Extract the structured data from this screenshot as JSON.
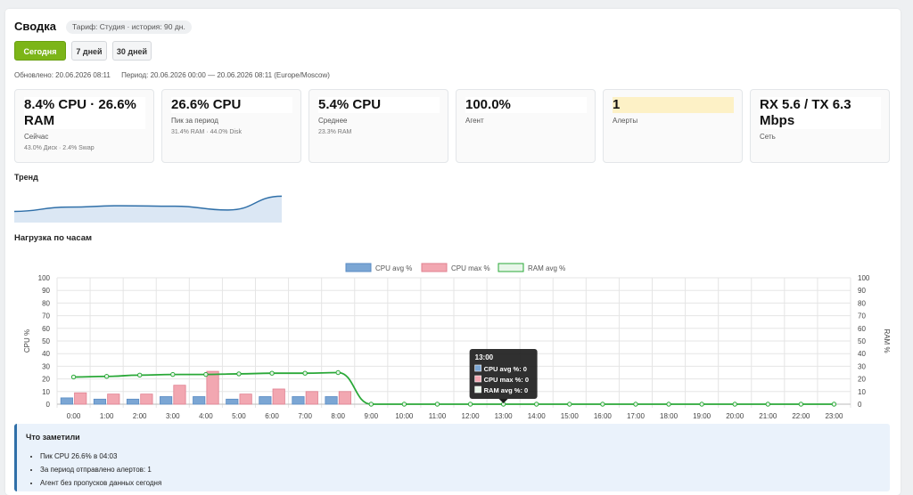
{
  "header": {
    "title": "Сводка",
    "badge": "Тариф: Студия · история: 90 дн."
  },
  "range_buttons": {
    "today": "Сегодня",
    "week": "7 дней",
    "month": "30 дней"
  },
  "meta": {
    "updated": "Обновлено: 20.06.2026 08:11",
    "period": "Период: 20.06.2026 00:00 — 20.06.2026 08:11 (Europe/Moscow)"
  },
  "cards": [
    {
      "value": "8.4% CPU · 26.6% RAM",
      "label": "Сейчас",
      "sub": "43.0% Диск · 2.4% Swap"
    },
    {
      "value": "26.6% CPU",
      "label": "Пик за период",
      "sub": "31.4% RAM · 44.0% Disk"
    },
    {
      "value": "5.4% CPU",
      "label": "Среднее",
      "sub": "23.3% RAM"
    },
    {
      "value": "100.0%",
      "label": "Агент",
      "sub": ""
    },
    {
      "value": "1",
      "label": "Алерты",
      "sub": ""
    },
    {
      "value": "RX 5.6 / TX 6.3 Mbps",
      "label": "Сеть",
      "sub": ""
    }
  ],
  "trend": {
    "title": "Тренд",
    "values": [
      8.0,
      12.5,
      14.0,
      13.5,
      9.5,
      24.0
    ]
  },
  "colors": {
    "accent": "#7cb518",
    "cpu_avg": "#7ba6d4",
    "cpu_max": "#f2a7b1",
    "ram_avg": "#2aa838",
    "trend_line": "#2f6fa8",
    "trend_fill": "#dbe7f4"
  },
  "load": {
    "title": "Нагрузка по часам"
  },
  "chart_data": {
    "type": "bar",
    "categories": [
      "0:00",
      "1:00",
      "2:00",
      "3:00",
      "4:00",
      "5:00",
      "6:00",
      "7:00",
      "8:00",
      "9:00",
      "10:00",
      "11:00",
      "12:00",
      "13:00",
      "14:00",
      "15:00",
      "16:00",
      "17:00",
      "18:00",
      "19:00",
      "20:00",
      "21:00",
      "22:00",
      "23:00"
    ],
    "series": [
      {
        "name": "CPU avg %",
        "kind": "bar",
        "values": [
          5,
          4,
          4,
          6,
          6,
          4,
          6,
          6,
          6,
          0,
          0,
          0,
          0,
          0,
          0,
          0,
          0,
          0,
          0,
          0,
          0,
          0,
          0,
          0
        ]
      },
      {
        "name": "CPU max %",
        "kind": "bar",
        "values": [
          9,
          8,
          8,
          15,
          26,
          8,
          12,
          10,
          10,
          0,
          0,
          0,
          0,
          0,
          0,
          0,
          0,
          0,
          0,
          0,
          0,
          0,
          0,
          0
        ]
      },
      {
        "name": "RAM avg %",
        "kind": "line",
        "values": [
          21.5,
          22,
          23,
          23.5,
          23.5,
          24,
          24.5,
          24.5,
          25,
          0,
          0,
          0,
          0,
          0,
          0,
          0,
          0,
          0,
          0,
          0,
          0,
          0,
          0,
          0
        ]
      }
    ],
    "ylabel": "CPU %",
    "y2label": "RAM %",
    "ylim": [
      0,
      100
    ],
    "yticks": [
      0,
      10,
      20,
      30,
      40,
      50,
      60,
      70,
      80,
      90,
      100
    ],
    "grid": true,
    "legend": "top",
    "tooltip": {
      "title": "13:00",
      "lines": [
        "CPU avg %: 0",
        "CPU max %: 0",
        "RAM avg %: 0"
      ],
      "category_index": 13
    }
  },
  "notes": {
    "title": "Что заметили",
    "items": [
      "Пик CPU 26.6% в 04:03",
      "За период отправлено алертов: 1",
      "Агент без пропусков данных сегодня"
    ]
  }
}
